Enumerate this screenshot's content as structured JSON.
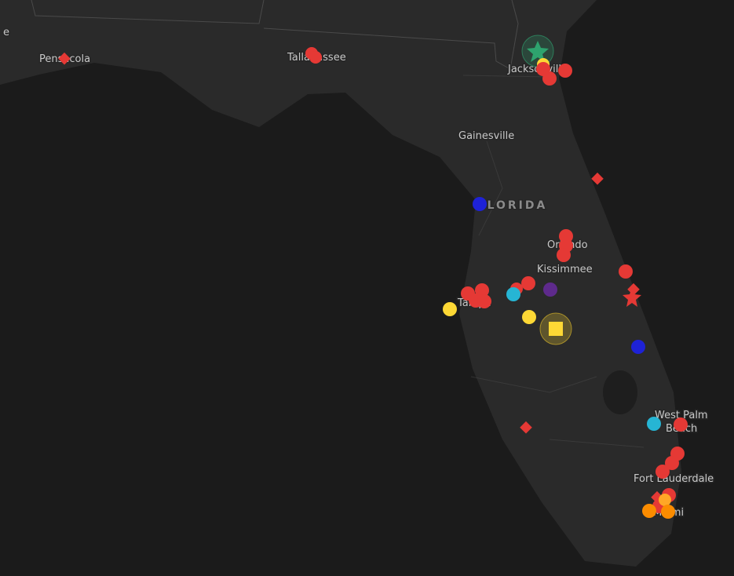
{
  "map": {
    "labels": [
      {
        "text": "e"
      },
      {
        "text": "Pensacola"
      },
      {
        "text": "Tallahassee"
      },
      {
        "text": "Jacksonville"
      },
      {
        "text": "Gainesville"
      },
      {
        "text": "FLORIDA"
      },
      {
        "text": "Orlando"
      },
      {
        "text": "Kissimmee"
      },
      {
        "text": "Tampa"
      },
      {
        "text": "West Palm"
      },
      {
        "text": "Beach"
      },
      {
        "text": "Fort Lauderdale"
      },
      {
        "text": "Miami"
      }
    ]
  }
}
